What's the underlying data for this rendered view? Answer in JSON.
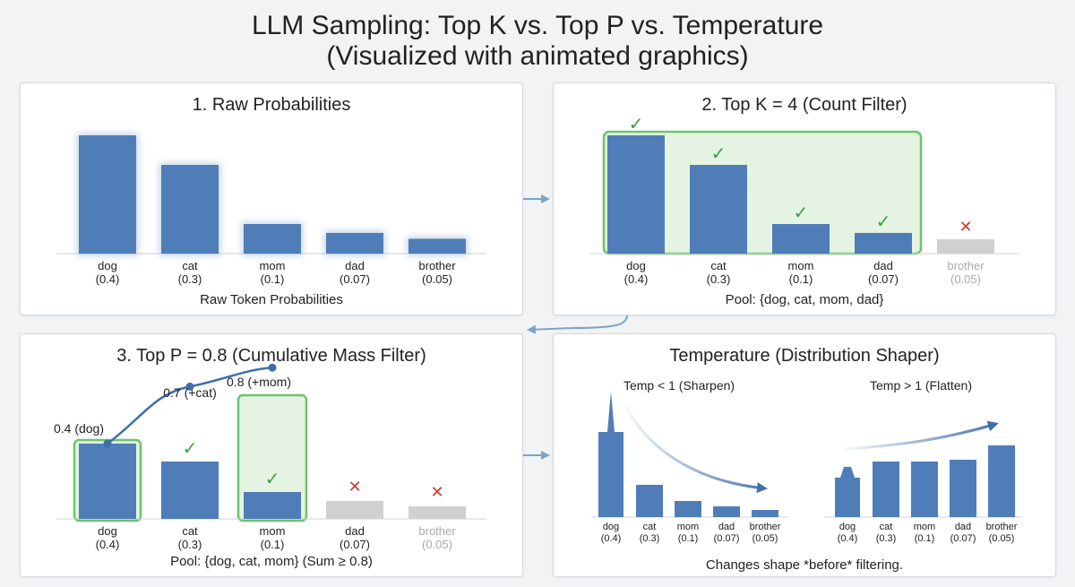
{
  "header": {
    "title_line1": "LLM Sampling: Top K vs. Top P vs. Temperature",
    "title_line2": "(Visualized with animated graphics)"
  },
  "colors": {
    "bar": "#4f7db8",
    "bar_dim": "#d0d0d0",
    "check": "#3aa04a",
    "cross": "#cf3a30",
    "highlight_fill": "#e4f3e2",
    "highlight_stroke": "#6ec36c",
    "arrow": "#7ea3c9",
    "curve": "#3e6fa8"
  },
  "tokens": [
    {
      "word": "dog",
      "prob": "(0.4)",
      "p": 0.4
    },
    {
      "word": "cat",
      "prob": "(0.3)",
      "p": 0.3
    },
    {
      "word": "mom",
      "prob": "(0.1)",
      "p": 0.1
    },
    {
      "word": "dad",
      "prob": "(0.07)",
      "p": 0.07
    },
    {
      "word": "brother",
      "prob": "(0.05)",
      "p": 0.05
    }
  ],
  "panel_raw": {
    "title": "1. Raw Probabilities",
    "caption": "Raw Token Probabilities"
  },
  "panel_topk": {
    "title": "2. Top K = 4 (Count Filter)",
    "k": 4,
    "caption": "Pool: {dog, cat, mom, dad}",
    "check_icon": "✓",
    "cross_icon": "✕"
  },
  "panel_topp": {
    "title": "3. Top P = 0.8 (Cumulative Mass Filter)",
    "caption": "Pool: {dog, cat, mom} (Sum ≥ 0.8)",
    "kept_count": 3,
    "cumulative_values": [
      0.4,
      0.7,
      0.8
    ],
    "cumulative_labels": [
      "0.4 (dog)",
      "0.7 (+cat)",
      "0.8 (+mom)"
    ],
    "check_icon": "✓",
    "cross_icon": "✕"
  },
  "panel_temp": {
    "title": "Temperature (Distribution Shaper)",
    "left_label": "Temp < 1 (Sharpen)",
    "right_label": "Temp > 1 (Flatten)",
    "caption": "Changes shape *before* filtering.",
    "sharpen_values": [
      0.6,
      0.15,
      0.07,
      0.05,
      0.03
    ],
    "flatten_values": [
      0.18,
      0.24,
      0.24,
      0.25,
      0.31
    ]
  }
}
